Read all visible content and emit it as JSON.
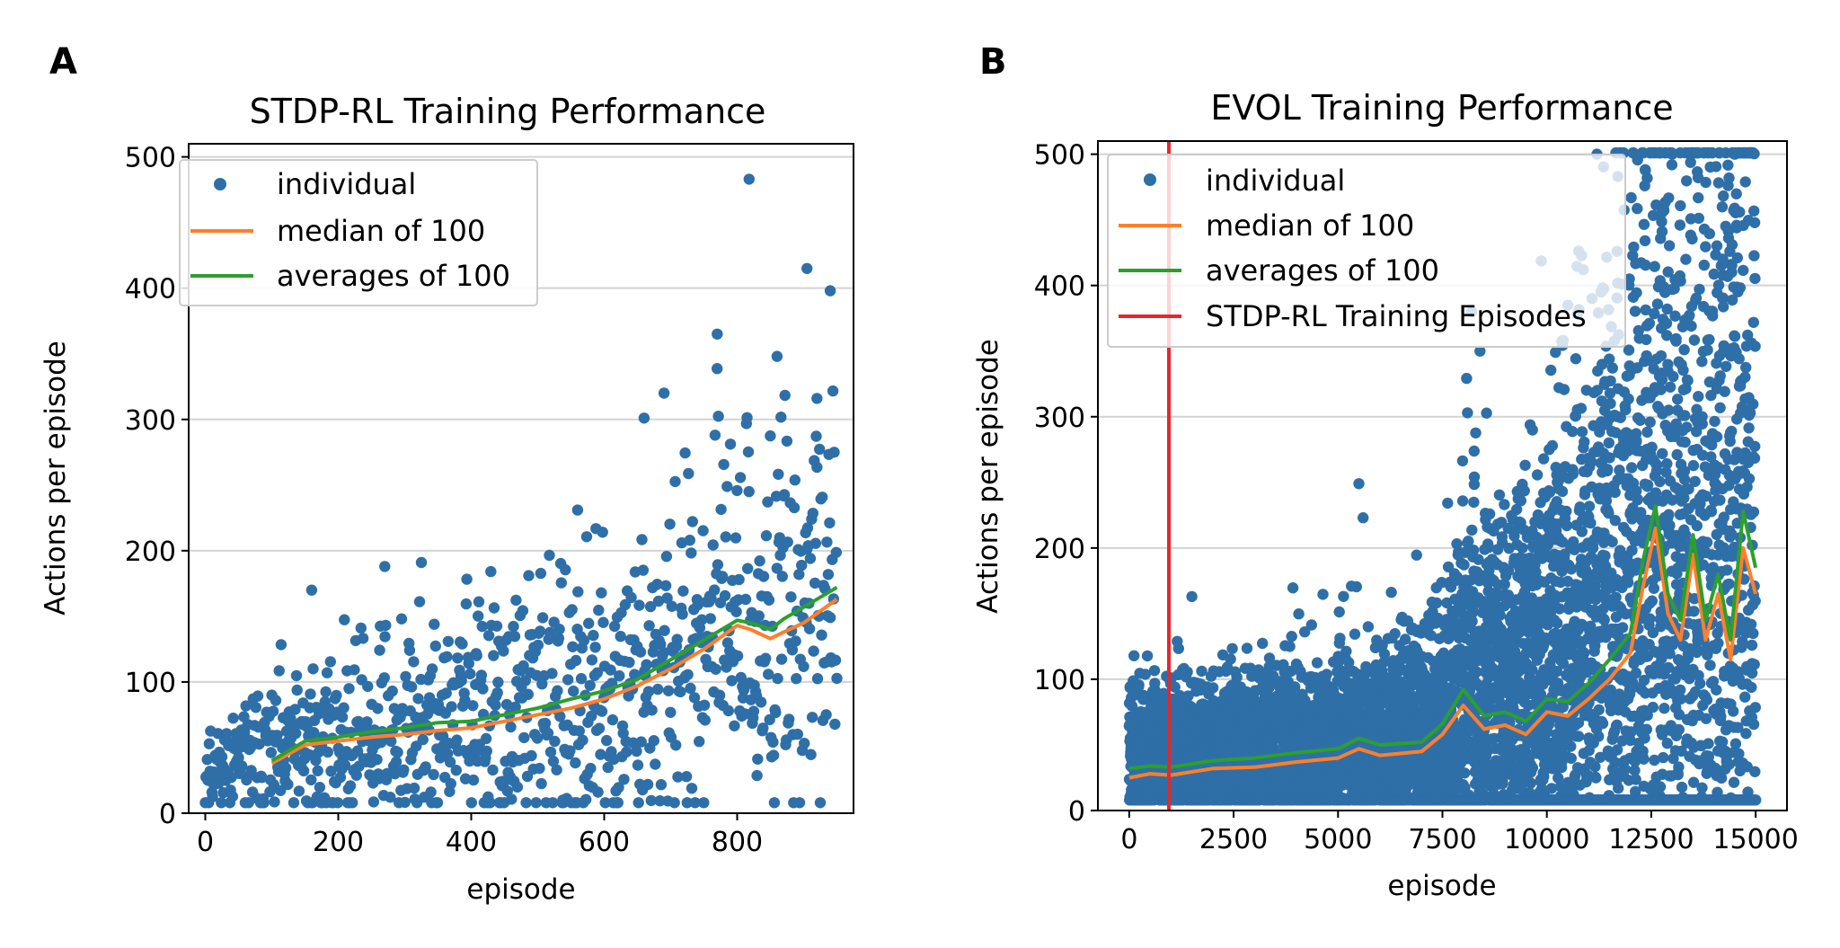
{
  "colors": {
    "individual": "#2f6fa8",
    "median": "#ff7f2a",
    "average": "#2ca02c",
    "stdp_line": "#e8262a",
    "grid": "#d3d3d3"
  },
  "panels": [
    {
      "letter": "A"
    },
    {
      "letter": "B"
    }
  ],
  "chart_data": [
    {
      "type": "scatter",
      "title": "STDP-RL Training Performance",
      "xlabel": "episode",
      "ylabel": "Actions per episode",
      "xlim": [
        -25,
        975
      ],
      "ylim": [
        0,
        510
      ],
      "xticks": [
        0,
        200,
        400,
        600,
        800
      ],
      "yticks": [
        0,
        100,
        200,
        300,
        400,
        500
      ],
      "grid": "horizontal",
      "legend_placement": "upper-left",
      "legend": [
        "individual",
        "median of 100",
        "averages of 100"
      ],
      "series": [
        {
          "name": "individual",
          "kind": "scatter",
          "n_points": 950,
          "trend": [
            [
              0,
              35
            ],
            [
              200,
              55
            ],
            [
              400,
              65
            ],
            [
              600,
              85
            ],
            [
              800,
              140
            ],
            [
              950,
              165
            ]
          ],
          "spread": [
            [
              0,
              18
            ],
            [
              200,
              35
            ],
            [
              400,
              45
            ],
            [
              600,
              55
            ],
            [
              800,
              70
            ],
            [
              950,
              80
            ]
          ],
          "notable_points": [
            [
              818,
              483
            ],
            [
              905,
              415
            ],
            [
              940,
              398
            ],
            [
              770,
              365
            ],
            [
              860,
              348
            ],
            [
              920,
              316
            ],
            [
              690,
              320
            ],
            [
              660,
              301
            ],
            [
              560,
              231
            ],
            [
              270,
              188
            ],
            [
              325,
              191
            ],
            [
              160,
              170
            ]
          ]
        },
        {
          "name": "median of 100",
          "kind": "line",
          "x": [
            100,
            150,
            200,
            250,
            300,
            350,
            400,
            450,
            500,
            550,
            600,
            650,
            700,
            750,
            800,
            820,
            850,
            870,
            900,
            950
          ],
          "y": [
            38,
            52,
            55,
            58,
            60,
            63,
            65,
            70,
            75,
            80,
            87,
            97,
            110,
            125,
            143,
            140,
            133,
            138,
            145,
            163
          ]
        },
        {
          "name": "averages of 100",
          "kind": "line",
          "x": [
            100,
            150,
            200,
            250,
            300,
            350,
            400,
            450,
            500,
            550,
            600,
            650,
            700,
            750,
            800,
            820,
            850,
            870,
            900,
            950
          ],
          "y": [
            40,
            55,
            58,
            62,
            65,
            69,
            70,
            75,
            80,
            87,
            93,
            102,
            117,
            132,
            147,
            145,
            140,
            148,
            157,
            172
          ]
        }
      ]
    },
    {
      "type": "scatter",
      "title": "EVOL Training Performance",
      "xlabel": "episode",
      "ylabel": "Actions per episode",
      "xlim": [
        -750,
        15750
      ],
      "ylim": [
        0,
        510
      ],
      "xticks": [
        0,
        2500,
        5000,
        7500,
        10000,
        12500,
        15000
      ],
      "yticks": [
        0,
        100,
        200,
        300,
        400,
        500
      ],
      "grid": "horizontal",
      "legend_placement": "upper-left",
      "legend": [
        "individual",
        "median of 100",
        "averages of 100",
        "STDP-RL Training Episodes"
      ],
      "vline_x": 950,
      "series": [
        {
          "name": "individual",
          "kind": "scatter",
          "n_points": 6000,
          "trend": [
            [
              0,
              40
            ],
            [
              3000,
              45
            ],
            [
              6000,
              50
            ],
            [
              7500,
              60
            ],
            [
              8000,
              85
            ],
            [
              9000,
              75
            ],
            [
              10000,
              95
            ],
            [
              11000,
              110
            ],
            [
              12000,
              140
            ],
            [
              13000,
              160
            ],
            [
              14000,
              150
            ],
            [
              15000,
              200
            ]
          ],
          "spread": [
            [
              0,
              25
            ],
            [
              3000,
              30
            ],
            [
              6000,
              35
            ],
            [
              7500,
              45
            ],
            [
              8000,
              70
            ],
            [
              10000,
              90
            ],
            [
              11500,
              150
            ],
            [
              12500,
              200
            ],
            [
              15000,
              250
            ]
          ],
          "notable_points": [
            [
              5500,
              249
            ],
            [
              5600,
              223
            ],
            [
              1500,
              163
            ],
            [
              8200,
              380
            ],
            [
              8400,
              350
            ],
            [
              8100,
              303
            ],
            [
              11200,
              500
            ],
            [
              11700,
              483
            ],
            [
              13000,
              500
            ],
            [
              14500,
              500
            ],
            [
              10500,
              385
            ],
            [
              11300,
              395
            ]
          ]
        },
        {
          "name": "median of 100",
          "kind": "line",
          "x": [
            0,
            500,
            1000,
            2000,
            3000,
            4000,
            5000,
            5500,
            6000,
            7000,
            7500,
            8000,
            8500,
            9000,
            9500,
            10000,
            10500,
            11000,
            11500,
            12000,
            12300,
            12600,
            12900,
            13200,
            13500,
            13800,
            14100,
            14400,
            14700,
            15000
          ],
          "y": [
            25,
            28,
            27,
            32,
            33,
            37,
            40,
            47,
            42,
            45,
            58,
            80,
            62,
            65,
            58,
            75,
            72,
            85,
            100,
            120,
            170,
            215,
            150,
            130,
            195,
            130,
            165,
            115,
            200,
            165
          ]
        },
        {
          "name": "averages of 100",
          "kind": "line",
          "x": [
            0,
            500,
            1000,
            2000,
            3000,
            4000,
            5000,
            5500,
            6000,
            7000,
            7500,
            8000,
            8500,
            9000,
            9500,
            10000,
            10500,
            11000,
            11500,
            12000,
            12300,
            12600,
            12900,
            13200,
            13500,
            13800,
            14100,
            14400,
            14700,
            15000
          ],
          "y": [
            32,
            34,
            33,
            38,
            40,
            44,
            47,
            55,
            50,
            52,
            66,
            92,
            72,
            75,
            68,
            85,
            83,
            97,
            115,
            135,
            190,
            232,
            165,
            145,
            210,
            145,
            180,
            130,
            228,
            185
          ]
        }
      ]
    }
  ]
}
